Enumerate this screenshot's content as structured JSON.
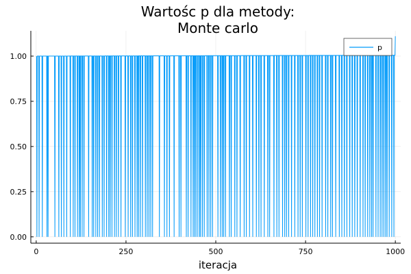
{
  "chart_data": {
    "type": "line",
    "title_lines": [
      "Wartośc p dla metody:",
      "Monte carlo"
    ],
    "xlabel": "iteracja",
    "ylabel": "",
    "xlim": [
      -15,
      1015
    ],
    "ylim": [
      -0.035,
      1.14
    ],
    "xticks": [
      0,
      250,
      500,
      750,
      1000
    ],
    "yticks": [
      0.0,
      0.25,
      0.5,
      0.75,
      1.0
    ],
    "xtick_labels": [
      "0",
      "250",
      "500",
      "750",
      "1000"
    ],
    "ytick_labels": [
      "0.00",
      "0.25",
      "0.50",
      "0.75",
      "1.00"
    ],
    "grid": true,
    "legend_position": "top-right",
    "series": [
      {
        "name": "p",
        "color": "#009AFA",
        "x_start": 1,
        "x_end": 1000,
        "baseline": 1.0,
        "baseline_end": 1.005,
        "final_value": 1.11,
        "zero_at": [
          2,
          8,
          17,
          30,
          33,
          52,
          63,
          70,
          77,
          85,
          95,
          103,
          108,
          115,
          120,
          123,
          128,
          133,
          146,
          156,
          160,
          166,
          171,
          176,
          184,
          189,
          196,
          202,
          206,
          211,
          218,
          223,
          229,
          236,
          248,
          256,
          263,
          268,
          275,
          281,
          285,
          290,
          296,
          304,
          309,
          314,
          319,
          324,
          343,
          357,
          364,
          371,
          384,
          398,
          403,
          418,
          423,
          431,
          437,
          441,
          445,
          450,
          455,
          458,
          463,
          468,
          476,
          481,
          486,
          491,
          506,
          513,
          518,
          522,
          527,
          538,
          543,
          553,
          559,
          568,
          579,
          585,
          594,
          603,
          613,
          620,
          626,
          635,
          645,
          650,
          662,
          670,
          676,
          686,
          692,
          697,
          703,
          711,
          720,
          729,
          735,
          741,
          751,
          757,
          764,
          770,
          776,
          783,
          789,
          796,
          806,
          812,
          820,
          825,
          834,
          844,
          851,
          858,
          865,
          873,
          880,
          887,
          894,
          902,
          910,
          916,
          923,
          929,
          934,
          938,
          946,
          952,
          958,
          963,
          968,
          973,
          977,
          983,
          990,
          996
        ]
      }
    ]
  }
}
